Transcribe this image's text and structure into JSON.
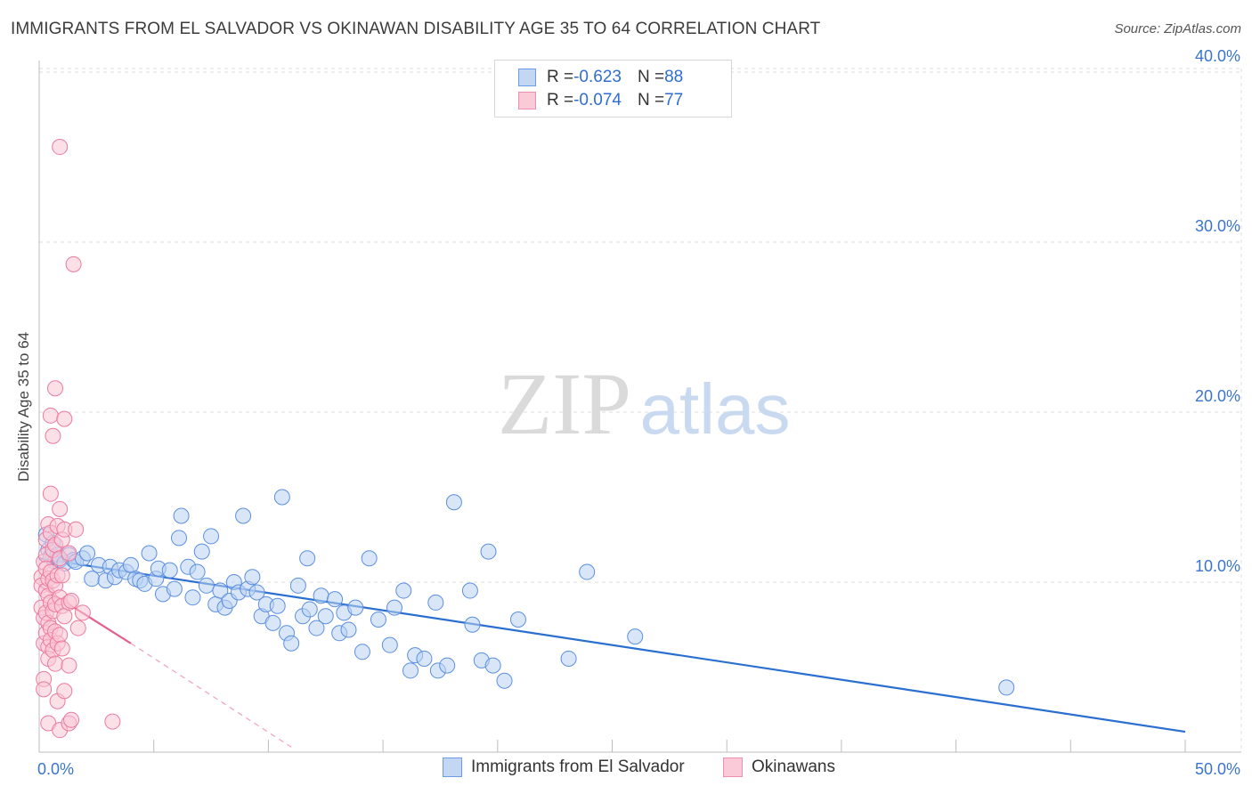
{
  "header": {
    "title": "IMMIGRANTS FROM EL SALVADOR VS OKINAWAN DISABILITY AGE 35 TO 64 CORRELATION CHART",
    "source": "Source: ZipAtlas.com"
  },
  "watermark": {
    "zip": "ZIP",
    "atlas": "atlas"
  },
  "legend": {
    "rows": [
      {
        "r_label": "R = ",
        "r_value": "-0.623",
        "n_label": "N = ",
        "n_value": "88",
        "color": "#adc9f0"
      },
      {
        "r_label": "R = ",
        "r_value": "-0.074",
        "n_label": "N = ",
        "n_value": "77",
        "color": "#f7b6c8"
      }
    ]
  },
  "bottom_legend": {
    "items": [
      {
        "label": "Immigrants from El Salvador",
        "color": "#adc9f0"
      },
      {
        "label": "Okinawans",
        "color": "#f7b6c8"
      }
    ]
  },
  "chart_data": {
    "type": "scatter",
    "ylabel": "Disability Age 35 to 64",
    "xlim": [
      0,
      50
    ],
    "ylim": [
      0,
      42
    ],
    "x_tick_labels": {
      "min": "0.0%",
      "max": "50.0%"
    },
    "y_ticks": [
      {
        "value": 10,
        "label": "10.0%"
      },
      {
        "value": 20,
        "label": "20.0%"
      },
      {
        "value": 30,
        "label": "30.0%"
      },
      {
        "value": 40,
        "label": "40.0%"
      }
    ],
    "grid": true,
    "legend_position": "top-center",
    "series": [
      {
        "name": "Immigrants from El Salvador",
        "color": "#5b8fe0",
        "fill": "#b9d1f3",
        "trend": {
          "x0": 0,
          "y0": 11.4,
          "x1": 50,
          "y1": 1.2,
          "color": "#2a6fd0"
        },
        "points": [
          [
            0.3,
            12.8
          ],
          [
            0.4,
            11.9
          ],
          [
            0.5,
            11.5
          ],
          [
            0.6,
            12.3
          ],
          [
            0.7,
            11.2
          ],
          [
            0.8,
            11.6
          ],
          [
            0.9,
            11.3
          ],
          [
            1.1,
            11.1
          ],
          [
            1.3,
            11.6
          ],
          [
            1.5,
            11.3
          ],
          [
            1.6,
            11.2
          ],
          [
            1.9,
            11.4
          ],
          [
            2.1,
            11.7
          ],
          [
            2.3,
            10.2
          ],
          [
            2.6,
            11.0
          ],
          [
            2.9,
            10.1
          ],
          [
            3.1,
            10.9
          ],
          [
            3.3,
            10.3
          ],
          [
            3.5,
            10.7
          ],
          [
            3.8,
            10.6
          ],
          [
            4.0,
            11.0
          ],
          [
            4.2,
            10.2
          ],
          [
            4.4,
            10.1
          ],
          [
            4.6,
            9.9
          ],
          [
            4.8,
            11.7
          ],
          [
            5.1,
            10.2
          ],
          [
            5.2,
            10.8
          ],
          [
            5.4,
            9.3
          ],
          [
            5.7,
            10.7
          ],
          [
            5.9,
            9.6
          ],
          [
            6.1,
            12.6
          ],
          [
            6.2,
            13.9
          ],
          [
            6.5,
            10.9
          ],
          [
            6.7,
            9.1
          ],
          [
            6.9,
            10.6
          ],
          [
            7.1,
            11.8
          ],
          [
            7.3,
            9.8
          ],
          [
            7.5,
            12.7
          ],
          [
            7.7,
            8.7
          ],
          [
            7.9,
            9.5
          ],
          [
            8.1,
            8.5
          ],
          [
            8.3,
            8.9
          ],
          [
            8.5,
            10.0
          ],
          [
            8.7,
            9.4
          ],
          [
            8.9,
            13.9
          ],
          [
            9.1,
            9.6
          ],
          [
            9.3,
            10.3
          ],
          [
            9.5,
            9.4
          ],
          [
            9.7,
            8.0
          ],
          [
            9.9,
            8.7
          ],
          [
            10.2,
            7.6
          ],
          [
            10.4,
            8.6
          ],
          [
            10.6,
            15.0
          ],
          [
            10.8,
            7.0
          ],
          [
            11.0,
            6.4
          ],
          [
            11.3,
            9.8
          ],
          [
            11.5,
            8.0
          ],
          [
            11.7,
            11.4
          ],
          [
            11.8,
            8.4
          ],
          [
            12.1,
            7.3
          ],
          [
            12.3,
            9.2
          ],
          [
            12.5,
            8.0
          ],
          [
            12.9,
            9.0
          ],
          [
            13.1,
            7.0
          ],
          [
            13.3,
            8.2
          ],
          [
            13.5,
            7.2
          ],
          [
            13.8,
            8.5
          ],
          [
            14.1,
            5.9
          ],
          [
            14.4,
            11.4
          ],
          [
            14.8,
            7.8
          ],
          [
            15.3,
            6.3
          ],
          [
            15.5,
            8.5
          ],
          [
            15.9,
            9.5
          ],
          [
            16.2,
            4.8
          ],
          [
            16.4,
            5.7
          ],
          [
            16.8,
            5.5
          ],
          [
            17.3,
            8.8
          ],
          [
            17.4,
            4.8
          ],
          [
            17.8,
            5.1
          ],
          [
            18.1,
            14.7
          ],
          [
            18.8,
            9.5
          ],
          [
            18.9,
            7.5
          ],
          [
            19.3,
            5.4
          ],
          [
            19.6,
            11.8
          ],
          [
            19.8,
            5.1
          ],
          [
            20.3,
            4.2
          ],
          [
            20.9,
            7.8
          ],
          [
            23.1,
            5.5
          ],
          [
            23.9,
            10.6
          ],
          [
            26.0,
            6.8
          ],
          [
            42.2,
            3.8
          ]
        ]
      },
      {
        "name": "Okinawans",
        "color": "#ec7aa0",
        "fill": "#f9c7d6",
        "trend": {
          "x0": 0,
          "y0": 9.8,
          "x1": 4.0,
          "y1": 6.4,
          "color": "#e4608e"
        },
        "trend_extension": {
          "x0": 4.0,
          "y0": 6.4,
          "x1": 11.0,
          "y1": 0.3
        },
        "points": [
          [
            0.1,
            10.3
          ],
          [
            0.1,
            9.8
          ],
          [
            0.1,
            8.5
          ],
          [
            0.2,
            11.2
          ],
          [
            0.2,
            7.9
          ],
          [
            0.2,
            6.4
          ],
          [
            0.2,
            4.3
          ],
          [
            0.2,
            3.7
          ],
          [
            0.3,
            12.5
          ],
          [
            0.3,
            11.6
          ],
          [
            0.3,
            10.8
          ],
          [
            0.3,
            9.5
          ],
          [
            0.3,
            8.2
          ],
          [
            0.3,
            7.0
          ],
          [
            0.4,
            13.4
          ],
          [
            0.4,
            10.2
          ],
          [
            0.4,
            9.2
          ],
          [
            0.4,
            7.6
          ],
          [
            0.4,
            6.2
          ],
          [
            0.4,
            5.5
          ],
          [
            0.4,
            1.7
          ],
          [
            0.5,
            19.8
          ],
          [
            0.5,
            15.2
          ],
          [
            0.5,
            12.9
          ],
          [
            0.5,
            10.6
          ],
          [
            0.5,
            8.8
          ],
          [
            0.5,
            7.3
          ],
          [
            0.5,
            6.6
          ],
          [
            0.6,
            18.6
          ],
          [
            0.6,
            11.9
          ],
          [
            0.6,
            10.1
          ],
          [
            0.6,
            8.3
          ],
          [
            0.6,
            6.0
          ],
          [
            0.7,
            21.4
          ],
          [
            0.7,
            12.2
          ],
          [
            0.7,
            9.8
          ],
          [
            0.7,
            8.7
          ],
          [
            0.7,
            7.1
          ],
          [
            0.7,
            5.2
          ],
          [
            0.8,
            13.3
          ],
          [
            0.8,
            10.4
          ],
          [
            0.8,
            6.4
          ],
          [
            0.8,
            3.0
          ],
          [
            0.9,
            35.6
          ],
          [
            0.9,
            14.3
          ],
          [
            0.9,
            11.4
          ],
          [
            0.9,
            9.1
          ],
          [
            0.9,
            6.9
          ],
          [
            0.9,
            1.3
          ],
          [
            1.0,
            12.5
          ],
          [
            1.0,
            10.4
          ],
          [
            1.0,
            8.6
          ],
          [
            1.0,
            6.1
          ],
          [
            1.1,
            19.6
          ],
          [
            1.1,
            13.1
          ],
          [
            1.1,
            8.0
          ],
          [
            1.1,
            3.6
          ],
          [
            1.3,
            11.7
          ],
          [
            1.3,
            8.8
          ],
          [
            1.3,
            5.1
          ],
          [
            1.3,
            1.7
          ],
          [
            1.4,
            8.9
          ],
          [
            1.4,
            1.9
          ],
          [
            1.5,
            28.7
          ],
          [
            1.6,
            13.1
          ],
          [
            1.7,
            7.3
          ],
          [
            1.9,
            8.2
          ],
          [
            3.2,
            1.8
          ]
        ]
      }
    ]
  }
}
